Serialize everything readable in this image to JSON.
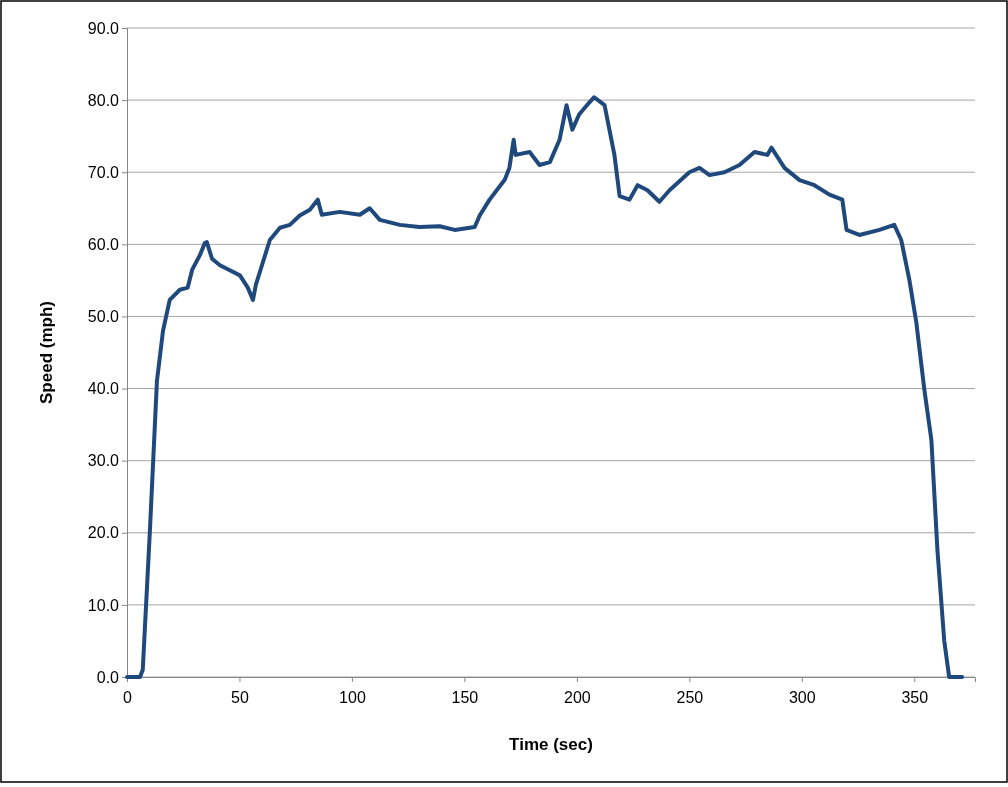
{
  "chart_data": {
    "type": "line",
    "xlabel": "Time (sec)",
    "ylabel": "Speed (mph)",
    "xlim": [
      0,
      377
    ],
    "xticks": [
      0,
      50,
      100,
      150,
      200,
      250,
      300,
      350
    ],
    "ylim": [
      0,
      90
    ],
    "yticks": [
      {
        "value": 0,
        "label": "0.0"
      },
      {
        "value": 10,
        "label": "10.0"
      },
      {
        "value": 20,
        "label": "20.0"
      },
      {
        "value": 30,
        "label": "30.0"
      },
      {
        "value": 40,
        "label": "40.0"
      },
      {
        "value": 50,
        "label": "50.0"
      },
      {
        "value": 60,
        "label": "60.0"
      },
      {
        "value": 70,
        "label": "70.0"
      },
      {
        "value": 80,
        "label": "80.0"
      },
      {
        "value": 90,
        "label": "90.0"
      }
    ],
    "grid": "y",
    "marker": "none",
    "line_style": "solid",
    "series": [
      {
        "color": "#1f497d",
        "x": [
          0,
          5.8,
          7,
          10.2,
          13.3,
          16,
          19,
          23.5,
          27,
          29,
          32.4,
          34.6,
          35.5,
          37.8,
          41.3,
          45.7,
          50.2,
          53.7,
          56,
          57.3,
          60,
          63.5,
          68,
          72.4,
          76.8,
          81.3,
          84.8,
          86.6,
          94.6,
          103.5,
          107.9,
          112.4,
          121.3,
          130,
          139,
          145.7,
          154.6,
          156.8,
          161.2,
          168,
          170,
          171.9,
          172.8,
          179,
          183.4,
          188,
          192.3,
          195.4,
          198,
          201,
          205.6,
          207.7,
          212.3,
          216.7,
          219,
          223.4,
          227,
          231.4,
          236.7,
          241.2,
          250,
          254.5,
          259,
          265.6,
          272.3,
          279,
          284.7,
          286.5,
          292.3,
          299,
          305.6,
          312.3,
          318,
          319.9,
          325.6,
          334.5,
          341.1,
          344.2,
          347.8,
          350.9,
          354.5,
          357.6,
          360.3,
          363.3,
          365.5,
          371.3
        ],
        "values": [
          0,
          0,
          1,
          20.4,
          41,
          48,
          52.3,
          53.7,
          54,
          56.5,
          58.5,
          60.2,
          60.3,
          58,
          57.1,
          56.4,
          55.7,
          54,
          52.3,
          54.4,
          57.1,
          60.6,
          62.3,
          62.7,
          64,
          64.8,
          66.2,
          64.1,
          64.5,
          64.1,
          65,
          63.4,
          62.7,
          62.4,
          62.5,
          62,
          62.4,
          64,
          66.2,
          69,
          70.6,
          74.5,
          72.4,
          72.8,
          71,
          71.4,
          74.5,
          79.3,
          75.9,
          78,
          79.7,
          80.4,
          79.3,
          72.4,
          66.7,
          66.2,
          68.2,
          67.5,
          65.9,
          67.5,
          70,
          70.6,
          69.6,
          70,
          71,
          72.8,
          72.4,
          73.4,
          70.6,
          68.9,
          68.2,
          66.9,
          66.2,
          62,
          61.3,
          62,
          62.7,
          60.6,
          55.1,
          49.2,
          39.8,
          32.9,
          17.6,
          5.1,
          0,
          0
        ]
      }
    ]
  }
}
